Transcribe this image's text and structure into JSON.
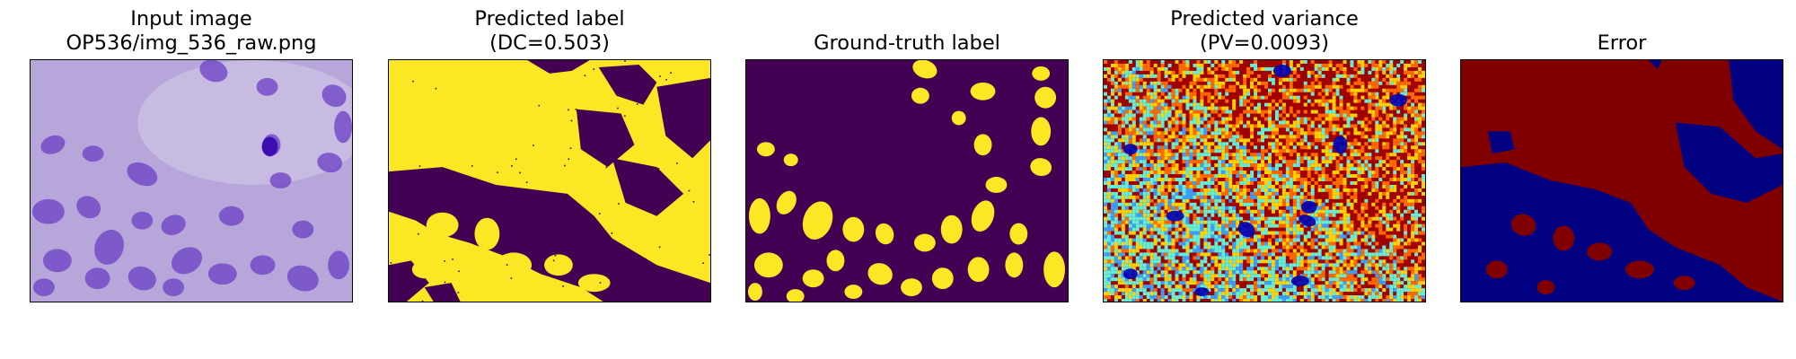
{
  "figure": {
    "panels": [
      {
        "id": "input",
        "title_line1": "Input image",
        "title_line2": "OP536/img_536_raw.png",
        "render": "he"
      },
      {
        "id": "pred",
        "title_line1": "Predicted label",
        "title_line2": "(DC=0.503)",
        "render": "pred"
      },
      {
        "id": "gt",
        "title_line1": "",
        "title_line2": "Ground-truth label",
        "render": "gt"
      },
      {
        "id": "var",
        "title_line1": "Predicted variance",
        "title_line2": "(PV=0.0093)",
        "render": "var"
      },
      {
        "id": "err",
        "title_line1": "",
        "title_line2": "Error",
        "render": "err"
      }
    ],
    "colors": {
      "he_background": "#b7a6da",
      "he_background_light": "#cfc4e6",
      "he_nucleus": "#6b3fc4",
      "he_nucleus_dark": "#3d0fb0",
      "viridis_low": "#440154",
      "viridis_high": "#fde725",
      "jet_red": "#a10000",
      "jet_orange": "#ff6a00",
      "jet_yellow": "#ffd400",
      "jet_cyan": "#63f0d6",
      "jet_lightblue": "#3aa0ff",
      "jet_blue": "#0000b5",
      "err_red": "#800000",
      "err_blue": "#000080"
    }
  }
}
